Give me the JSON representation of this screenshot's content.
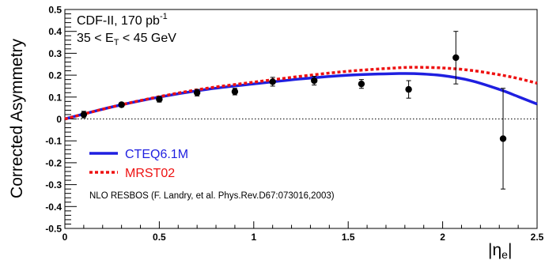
{
  "chart_data": {
    "type": "scatter",
    "title": "",
    "xlabel": "|η_e|",
    "xlabel_main": "|η",
    "xlabel_sub": "e",
    "xlabel_close": "|",
    "ylabel": "Corrected Asymmetry",
    "xlim": [
      0,
      2.5
    ],
    "ylim": [
      -0.5,
      0.5
    ],
    "x_ticks": [
      0,
      0.5,
      1,
      1.5,
      2,
      2.5
    ],
    "x_tick_labels": [
      "0",
      "0.5",
      "1",
      "1.5",
      "2",
      "2.5"
    ],
    "y_ticks": [
      -0.5,
      -0.4,
      -0.3,
      -0.2,
      -0.1,
      0,
      0.1,
      0.2,
      0.3,
      0.4,
      0.5
    ],
    "y_tick_labels": [
      "-0.5",
      "-0.4",
      "-0.3",
      "-0.2",
      "-0.1",
      "0",
      "0.1",
      "0.2",
      "0.3",
      "0.4",
      "0.5"
    ],
    "grid": false,
    "zero_line": true,
    "annotations": {
      "line1_main": "CDF-II, 170 pb",
      "line1_sup": "-1",
      "line2_a": "35 < E",
      "line2_sub": "T",
      "line2_b": " < 45 GeV",
      "reference": "NLO RESBOS (F. Landry, et al. Phys.Rev.D67:073016,2003)"
    },
    "legend_position": "bottom-left",
    "data_points": {
      "x": [
        0.1,
        0.3,
        0.5,
        0.7,
        0.9,
        1.1,
        1.32,
        1.57,
        1.82,
        2.07,
        2.32
      ],
      "y": [
        0.02,
        0.065,
        0.09,
        0.12,
        0.125,
        0.17,
        0.175,
        0.16,
        0.135,
        0.28,
        -0.09
      ],
      "yerr": [
        0.015,
        0.01,
        0.013,
        0.015,
        0.015,
        0.02,
        0.02,
        0.02,
        0.04,
        0.12,
        0.23
      ]
    },
    "series": [
      {
        "name": "CTEQ6.1M",
        "style": "solid",
        "color": "#1f1fe0",
        "x": [
          0,
          0.25,
          0.5,
          0.75,
          1.0,
          1.25,
          1.5,
          1.75,
          1.85,
          2.0,
          2.15,
          2.3,
          2.4,
          2.5
        ],
        "y": [
          0,
          0.055,
          0.1,
          0.135,
          0.16,
          0.183,
          0.2,
          0.207,
          0.207,
          0.198,
          0.175,
          0.135,
          0.102,
          0.068
        ]
      },
      {
        "name": "MRST02",
        "style": "dashed",
        "color": "#ee1111",
        "x": [
          0,
          0.25,
          0.5,
          0.75,
          1.0,
          1.25,
          1.5,
          1.75,
          1.85,
          2.0,
          2.15,
          2.3,
          2.4,
          2.5
        ],
        "y": [
          0,
          0.055,
          0.102,
          0.14,
          0.168,
          0.195,
          0.218,
          0.233,
          0.236,
          0.233,
          0.222,
          0.202,
          0.185,
          0.163
        ]
      }
    ]
  }
}
